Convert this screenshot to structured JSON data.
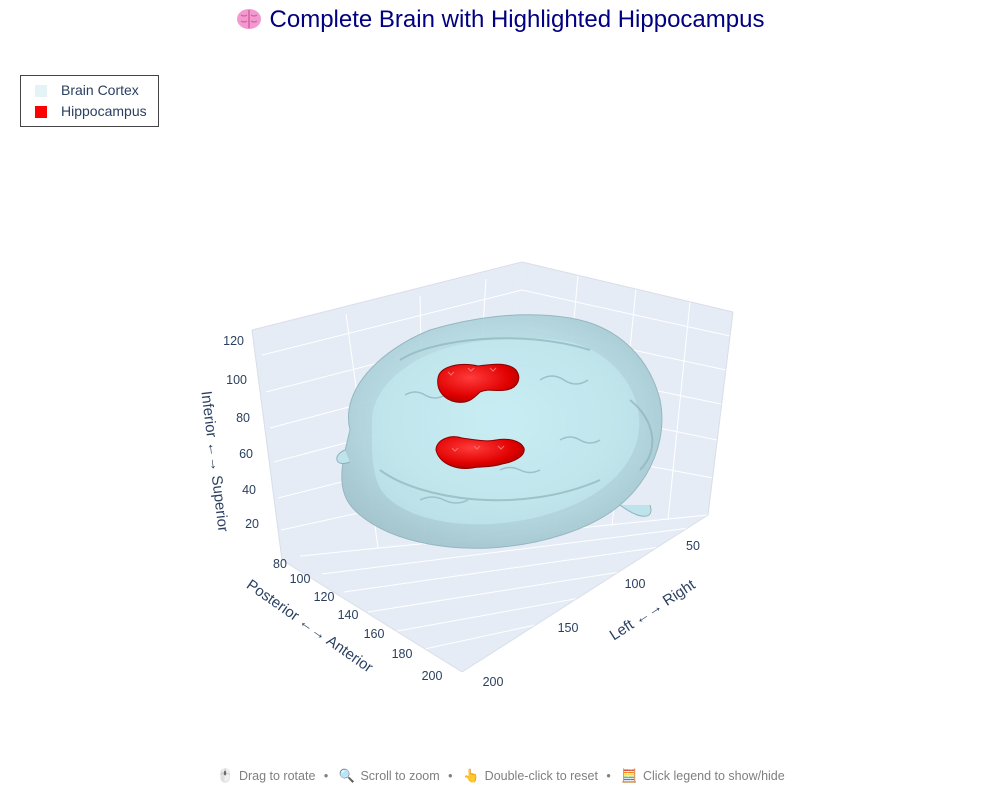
{
  "chart_data": {
    "type": "3d-isosurface",
    "title": "Complete Brain with Highlighted Hippocampus",
    "title_icon": "brain-icon",
    "series": [
      {
        "name": "Brain Cortex",
        "color": "#bfe3ea"
      },
      {
        "name": "Hippocampus",
        "color": "#ff0000"
      }
    ],
    "axes": {
      "x": {
        "label": "Left ←→ Right",
        "ticks": [
          "50",
          "100",
          "150",
          "200"
        ]
      },
      "y": {
        "label": "Posterior ←→ Anterior",
        "ticks": [
          "80",
          "100",
          "120",
          "140",
          "160",
          "180",
          "200"
        ]
      },
      "z": {
        "label": "Inferior ←→ Superior",
        "ticks": [
          "20",
          "40",
          "60",
          "80",
          "100",
          "120"
        ]
      }
    },
    "legend_position": "top-left",
    "scene_background": "#e5ecf6"
  },
  "footer": {
    "rotate": "Drag to rotate",
    "zoom": "Scroll to zoom",
    "reset": "Double-click to reset",
    "legend": "Click legend to show/hide",
    "separator": "•"
  }
}
